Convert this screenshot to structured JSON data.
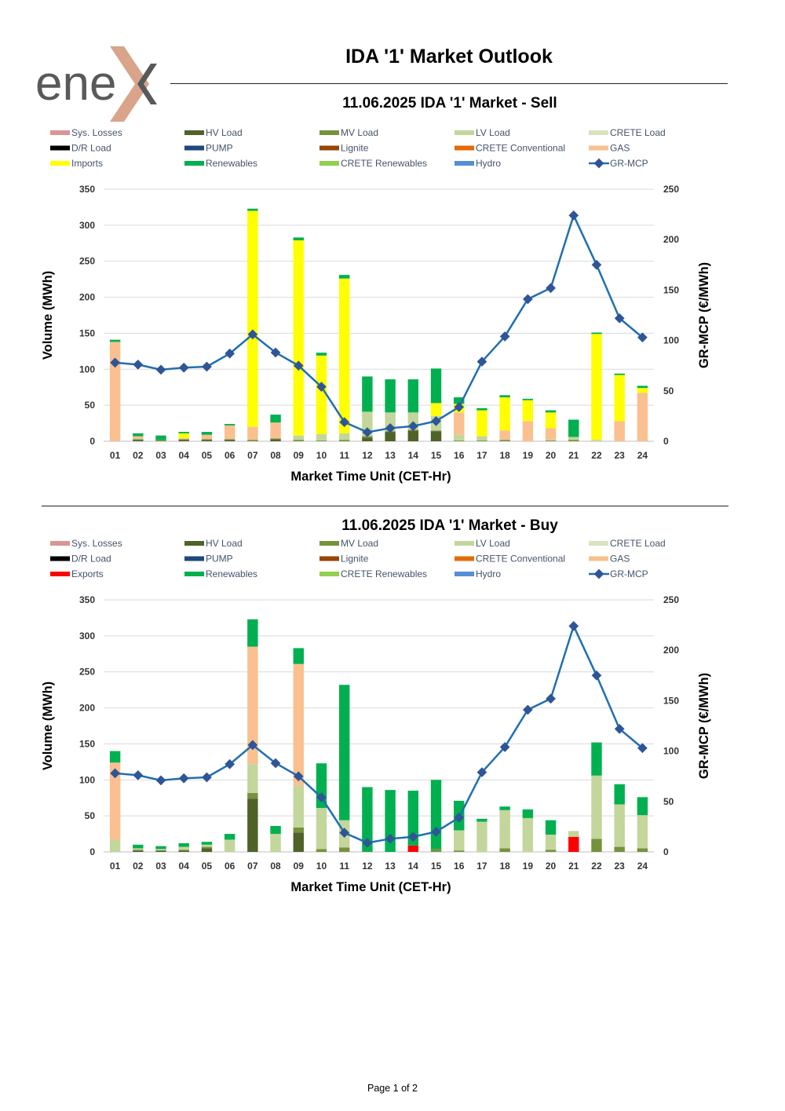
{
  "logo": {
    "text": "ene",
    "brand_dark": "#58595b",
    "brand_accent": "#d9a48a"
  },
  "document": {
    "title": "IDA '1' Market Outlook",
    "footer": "Page 1 of 2"
  },
  "chart_data": [
    {
      "type": "bar",
      "stacked": true,
      "title": "11.06.2025  IDA '1' Market - Sell",
      "xlabel": "Market Time Unit (CET-Hr)",
      "ylabel": "Volume (MWh)",
      "y2label": "GR-MCP (€/MWh)",
      "ylim": [
        0,
        350
      ],
      "y2lim": [
        0,
        250
      ],
      "yticks": [
        0,
        50,
        100,
        150,
        200,
        250,
        300,
        350
      ],
      "y2ticks": [
        0,
        50,
        100,
        150,
        200,
        250
      ],
      "categories": [
        "01",
        "02",
        "03",
        "04",
        "05",
        "06",
        "07",
        "08",
        "09",
        "10",
        "11",
        "12",
        "13",
        "14",
        "15",
        "16",
        "17",
        "18",
        "19",
        "20",
        "21",
        "22",
        "23",
        "24"
      ],
      "legend": [
        {
          "name": "Sys. Losses",
          "color": "#d99694",
          "kind": "bar"
        },
        {
          "name": "HV Load",
          "color": "#4f6228",
          "kind": "bar"
        },
        {
          "name": "MV Load",
          "color": "#76923c",
          "kind": "bar"
        },
        {
          "name": "LV Load",
          "color": "#c3d69b",
          "kind": "bar"
        },
        {
          "name": "CRETE Load",
          "color": "#d7e4bd",
          "kind": "bar"
        },
        {
          "name": "D/R Load",
          "color": "#000000",
          "kind": "bar"
        },
        {
          "name": "PUMP",
          "color": "#1f497d",
          "kind": "bar"
        },
        {
          "name": "Lignite",
          "color": "#974706",
          "kind": "bar"
        },
        {
          "name": "CRETE Conventional",
          "color": "#e36c09",
          "kind": "bar"
        },
        {
          "name": "GAS",
          "color": "#fac090",
          "kind": "bar"
        },
        {
          "name": "Imports",
          "color": "#ffff00",
          "kind": "bar"
        },
        {
          "name": "Renewables",
          "color": "#00b050",
          "kind": "bar"
        },
        {
          "name": "CRETE Renewables",
          "color": "#92d050",
          "kind": "bar"
        },
        {
          "name": "Hydro",
          "color": "#558ed5",
          "kind": "bar"
        },
        {
          "name": "GR-MCP",
          "color": "#1f6fb2",
          "kind": "line"
        }
      ],
      "series": [
        {
          "name": "HV Load",
          "color": "#4f6228",
          "values": [
            0,
            2,
            0,
            2,
            2,
            2,
            0,
            3,
            0,
            0,
            0,
            5,
            13,
            15,
            14,
            0,
            0,
            0,
            0,
            0,
            0,
            0,
            0,
            0
          ]
        },
        {
          "name": "MV Load",
          "color": "#76923c",
          "values": [
            0,
            1,
            2,
            1,
            1,
            1,
            2,
            1,
            2,
            1,
            2,
            2,
            1,
            1,
            1,
            1,
            1,
            2,
            0,
            1,
            2,
            0,
            0,
            0
          ]
        },
        {
          "name": "LV Load",
          "color": "#c3d69b",
          "values": [
            0,
            1,
            0,
            0,
            0,
            0,
            0,
            0,
            6,
            9,
            9,
            34,
            26,
            24,
            20,
            8,
            6,
            0,
            0,
            1,
            4,
            2,
            0,
            0
          ]
        },
        {
          "name": "GAS",
          "color": "#fac090",
          "values": [
            138,
            3,
            0,
            1,
            6,
            19,
            18,
            22,
            0,
            0,
            0,
            0,
            0,
            0,
            0,
            31,
            0,
            13,
            28,
            16,
            0,
            0,
            28,
            67
          ]
        },
        {
          "name": "Imports",
          "color": "#ffff00",
          "values": [
            0,
            0,
            0,
            7,
            0,
            0,
            300,
            0,
            271,
            109,
            215,
            0,
            0,
            0,
            18,
            12,
            36,
            46,
            29,
            22,
            0,
            147,
            64,
            7
          ]
        },
        {
          "name": "Renewables",
          "color": "#00b050",
          "values": [
            3,
            4,
            6,
            2,
            4,
            2,
            3,
            11,
            4,
            4,
            5,
            49,
            46,
            46,
            48,
            9,
            3,
            3,
            2,
            3,
            24,
            2,
            2,
            3
          ]
        }
      ],
      "line": {
        "name": "GR-MCP",
        "color": "#1f6fb2",
        "values": [
          78,
          76,
          71,
          73,
          74,
          87,
          106,
          88,
          75,
          54,
          19,
          9,
          13,
          15,
          20,
          34,
          79,
          104,
          141,
          152,
          224,
          175,
          122,
          103
        ]
      }
    },
    {
      "type": "bar",
      "stacked": true,
      "title": "11.06.2025  IDA '1' Market - Buy",
      "xlabel": "Market Time Unit (CET-Hr)",
      "ylabel": "Volume (MWh)",
      "y2label": "GR-MCP (€/MWh)",
      "ylim": [
        0,
        350
      ],
      "y2lim": [
        0,
        250
      ],
      "yticks": [
        0,
        50,
        100,
        150,
        200,
        250,
        300,
        350
      ],
      "y2ticks": [
        0,
        50,
        100,
        150,
        200,
        250
      ],
      "categories": [
        "01",
        "02",
        "03",
        "04",
        "05",
        "06",
        "07",
        "08",
        "09",
        "10",
        "11",
        "12",
        "13",
        "14",
        "15",
        "16",
        "17",
        "18",
        "19",
        "20",
        "21",
        "22",
        "23",
        "24"
      ],
      "legend": [
        {
          "name": "Sys. Losses",
          "color": "#d99694",
          "kind": "bar"
        },
        {
          "name": "HV Load",
          "color": "#4f6228",
          "kind": "bar"
        },
        {
          "name": "MV Load",
          "color": "#76923c",
          "kind": "bar"
        },
        {
          "name": "LV Load",
          "color": "#c3d69b",
          "kind": "bar"
        },
        {
          "name": "CRETE Load",
          "color": "#d7e4bd",
          "kind": "bar"
        },
        {
          "name": "D/R Load",
          "color": "#000000",
          "kind": "bar"
        },
        {
          "name": "PUMP",
          "color": "#1f497d",
          "kind": "bar"
        },
        {
          "name": "Lignite",
          "color": "#974706",
          "kind": "bar"
        },
        {
          "name": "CRETE Conventional",
          "color": "#e36c09",
          "kind": "bar"
        },
        {
          "name": "GAS",
          "color": "#fac090",
          "kind": "bar"
        },
        {
          "name": "Exports",
          "color": "#ff0000",
          "kind": "bar"
        },
        {
          "name": "Renewables",
          "color": "#00b050",
          "kind": "bar"
        },
        {
          "name": "CRETE Renewables",
          "color": "#92d050",
          "kind": "bar"
        },
        {
          "name": "Hydro",
          "color": "#558ed5",
          "kind": "bar"
        },
        {
          "name": "GR-MCP",
          "color": "#1f6fb2",
          "kind": "line"
        }
      ],
      "series": [
        {
          "name": "Exports",
          "color": "#ff0000",
          "values": [
            0,
            0,
            0,
            0,
            0,
            0,
            0,
            0,
            0,
            0,
            0,
            0,
            0,
            9,
            0,
            0,
            0,
            0,
            0,
            0,
            21,
            0,
            0,
            0
          ]
        },
        {
          "name": "HV Load",
          "color": "#4f6228",
          "values": [
            0,
            2,
            2,
            2,
            5,
            0,
            74,
            0,
            27,
            0,
            0,
            0,
            0,
            0,
            0,
            0,
            0,
            0,
            0,
            0,
            0,
            0,
            0,
            0
          ]
        },
        {
          "name": "MV Load",
          "color": "#76923c",
          "values": [
            0,
            1,
            0,
            1,
            2,
            0,
            8,
            0,
            7,
            4,
            6,
            0,
            0,
            0,
            4,
            2,
            0,
            5,
            0,
            3,
            0,
            18,
            7,
            5
          ]
        },
        {
          "name": "LV Load",
          "color": "#c3d69b",
          "values": [
            17,
            2,
            2,
            4,
            3,
            17,
            40,
            25,
            58,
            57,
            38,
            0,
            0,
            0,
            0,
            28,
            42,
            53,
            47,
            21,
            8,
            88,
            59,
            46
          ]
        },
        {
          "name": "GAS",
          "color": "#fac090",
          "values": [
            107,
            0,
            0,
            0,
            0,
            0,
            163,
            0,
            169,
            0,
            0,
            0,
            0,
            0,
            0,
            0,
            0,
            0,
            0,
            0,
            0,
            0,
            0,
            0
          ]
        },
        {
          "name": "Renewables",
          "color": "#00b050",
          "values": [
            16,
            5,
            4,
            5,
            4,
            8,
            38,
            11,
            22,
            62,
            188,
            90,
            86,
            76,
            96,
            41,
            4,
            5,
            12,
            20,
            0,
            46,
            28,
            25
          ]
        }
      ],
      "line": {
        "name": "GR-MCP",
        "color": "#1f6fb2",
        "values": [
          78,
          76,
          71,
          73,
          74,
          87,
          106,
          88,
          75,
          54,
          19,
          9,
          13,
          15,
          20,
          34,
          79,
          104,
          141,
          152,
          224,
          175,
          122,
          103
        ]
      }
    }
  ]
}
